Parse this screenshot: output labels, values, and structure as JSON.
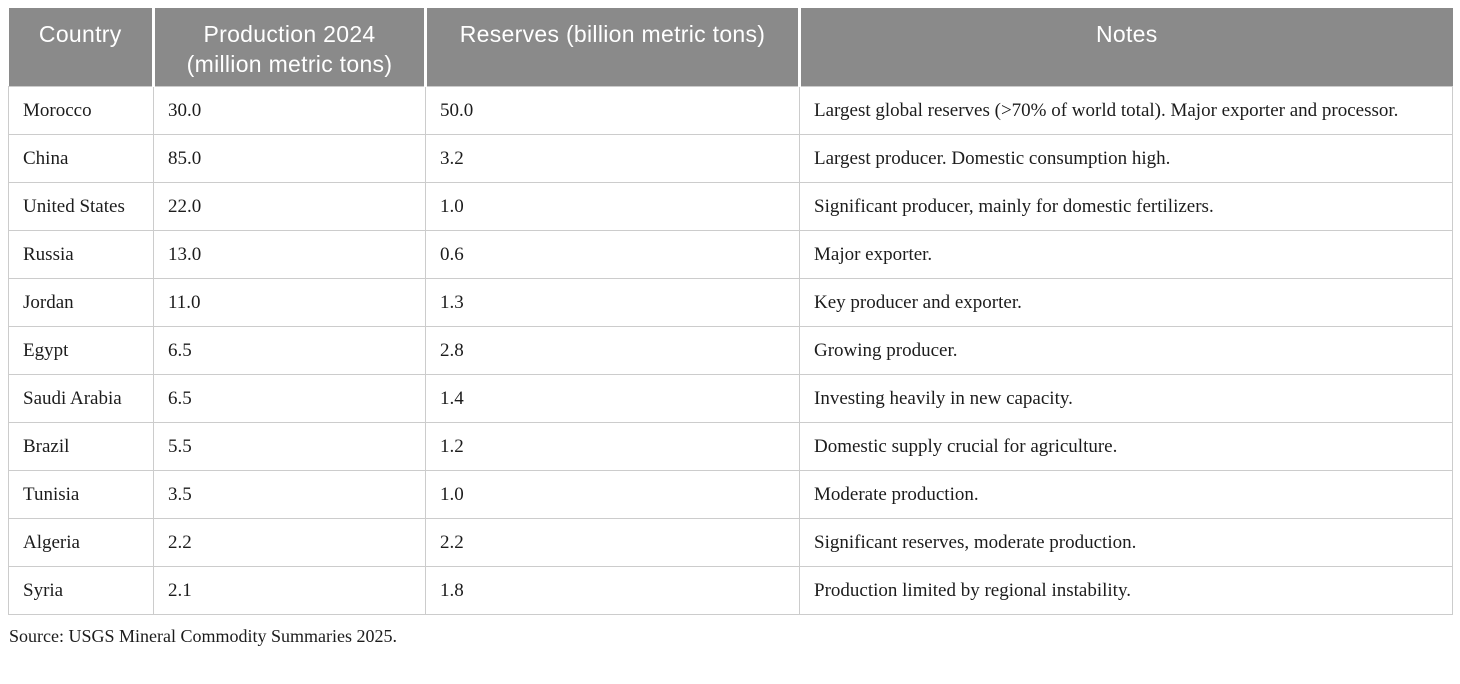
{
  "colors": {
    "header_bg": "#8a8a8a",
    "header_text": "#ffffff",
    "body_text": "#1c1c1c",
    "border": "#cccccc"
  },
  "table": {
    "headers": {
      "country": "Country",
      "production": "Production 2024\n(million metric tons)",
      "reserves": "Reserves (billion metric tons)",
      "notes": "Notes"
    },
    "rows": [
      {
        "country": "Morocco",
        "production": "30.0",
        "reserves": "50.0",
        "notes": "Largest global reserves (>70% of world total). Major exporter and processor."
      },
      {
        "country": "China",
        "production": "85.0",
        "reserves": "3.2",
        "notes": "Largest producer. Domestic consumption high."
      },
      {
        "country": "United States",
        "production": "22.0",
        "reserves": "1.0",
        "notes": "Significant producer, mainly for domestic fertilizers."
      },
      {
        "country": "Russia",
        "production": "13.0",
        "reserves": "0.6",
        "notes": "Major exporter."
      },
      {
        "country": "Jordan",
        "production": "11.0",
        "reserves": "1.3",
        "notes": "Key producer and exporter."
      },
      {
        "country": "Egypt",
        "production": "6.5",
        "reserves": "2.8",
        "notes": "Growing producer."
      },
      {
        "country": "Saudi Arabia",
        "production": "6.5",
        "reserves": "1.4",
        "notes": "Investing heavily in new capacity."
      },
      {
        "country": "Brazil",
        "production": "5.5",
        "reserves": "1.2",
        "notes": "Domestic supply crucial for agriculture."
      },
      {
        "country": "Tunisia",
        "production": "3.5",
        "reserves": "1.0",
        "notes": "Moderate production."
      },
      {
        "country": "Algeria",
        "production": "2.2",
        "reserves": "2.2",
        "notes": "Significant reserves, moderate production."
      },
      {
        "country": "Syria",
        "production": "2.1",
        "reserves": "1.8",
        "notes": "Production limited by regional instability."
      }
    ],
    "source": "Source: USGS Mineral Commodity Summaries 2025."
  }
}
